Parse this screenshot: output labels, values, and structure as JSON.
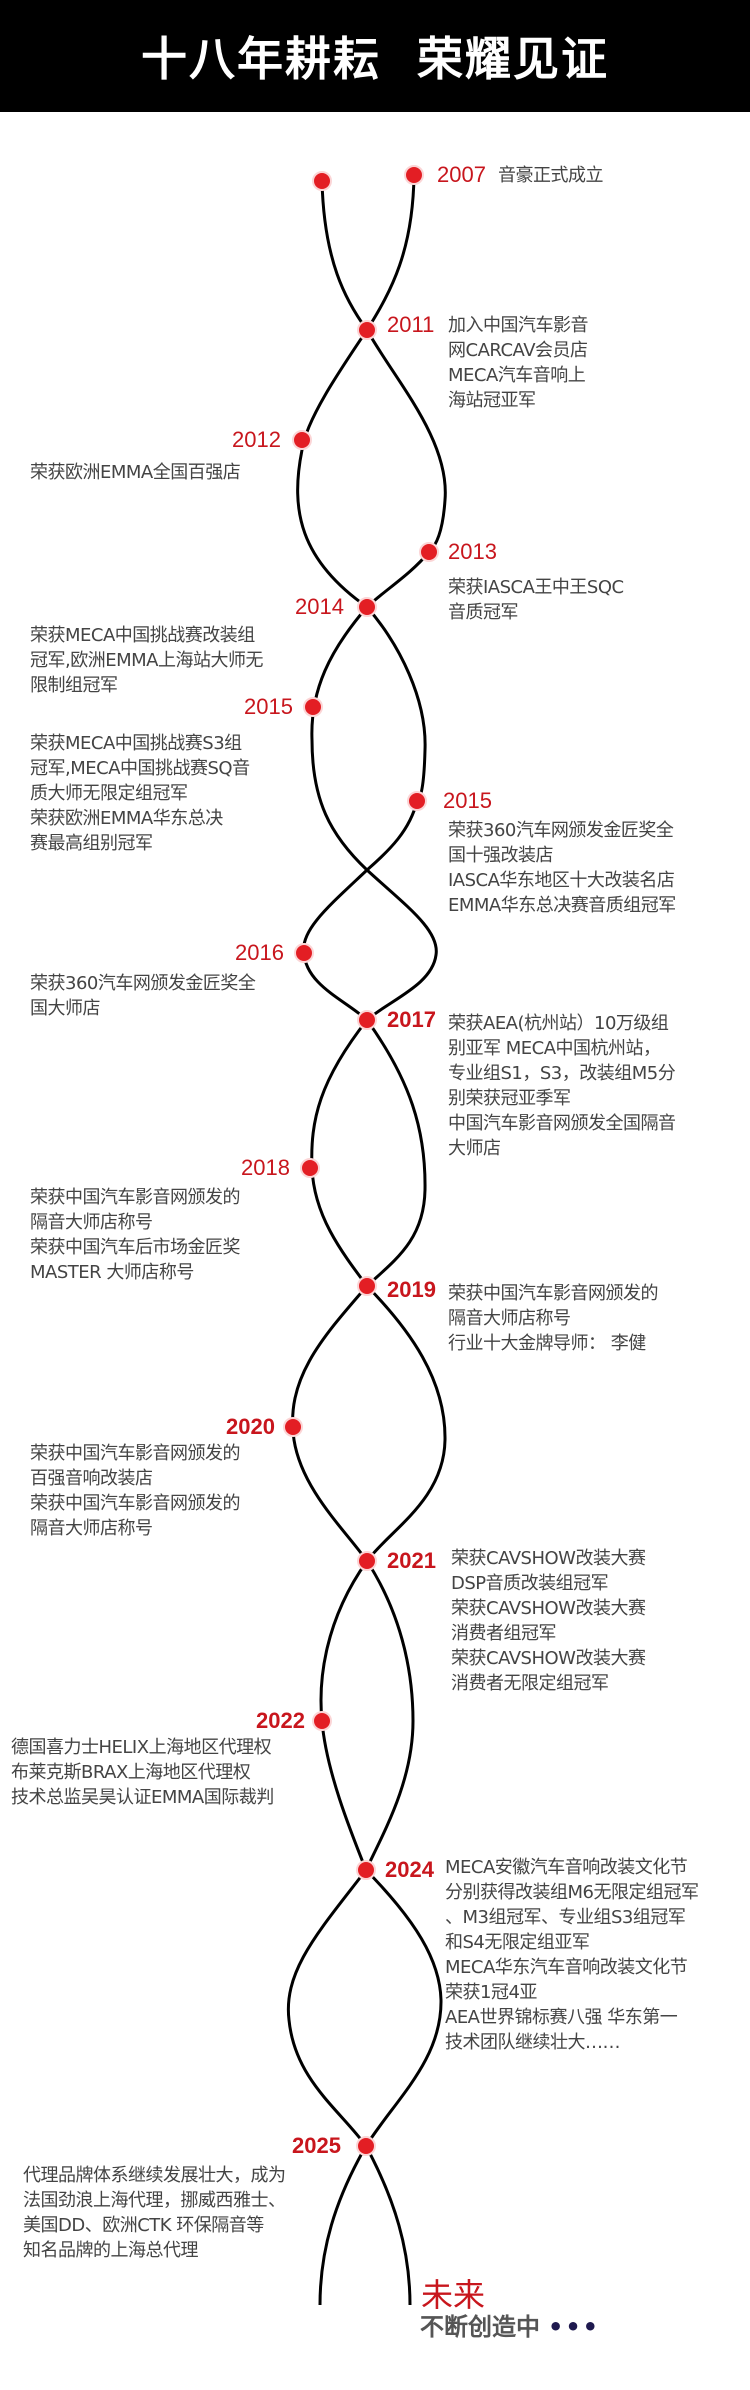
{
  "header": {
    "title": "十八年耕耘  荣耀见证"
  },
  "colors": {
    "header_bg": "#000000",
    "year": "#c8161d",
    "dot": "#e31e24",
    "text": "#444444",
    "line": "#000000"
  },
  "events": [
    {
      "year": "2007",
      "lines": [
        "音豪正式成立"
      ]
    },
    {
      "year": "2011",
      "lines": [
        "加入中国汽车影音",
        "网CARCAV会员店",
        "MECA汽车音响上",
        "海站冠亚军"
      ]
    },
    {
      "year": "2012",
      "lines": [
        "荣获欧洲EMMA全国百强店"
      ]
    },
    {
      "year": "2013",
      "lines": [
        "荣获IASCA王中王SQC",
        "音质冠军"
      ]
    },
    {
      "year": "2014",
      "lines": [
        "荣获MECA中国挑战赛改装组",
        "冠军,欧洲EMMA上海站大师无",
        "限制组冠军"
      ]
    },
    {
      "year": "2015",
      "lines": [
        "荣获MECA中国挑战赛S3组",
        "冠军,MECA中国挑战赛SQ音",
        "质大师无限定组冠军",
        "荣获欧洲EMMA华东总决",
        "赛最高组别冠军"
      ]
    },
    {
      "year": "2015",
      "lines": [
        "荣获360汽车网颁发金匠奖全",
        "国十强改装店",
        "IASCA华东地区十大改装名店",
        "EMMA华东总决赛音质组冠军"
      ]
    },
    {
      "year": "2016",
      "lines": [
        "荣获360汽车网颁发金匠奖全",
        "国大师店"
      ]
    },
    {
      "year": "2017",
      "lines": [
        "荣获AEA(杭州站）10万级组",
        "别亚军  MECA中国杭州站，",
        "专业组S1，S3，改装组M5分",
        "别荣获冠亚季军",
        "中国汽车影音网颁发全国隔音",
        "大师店"
      ]
    },
    {
      "year": "2018",
      "lines": [
        "荣获中国汽车影音网颁发的",
        "隔音大师店称号",
        "荣获中国汽车后市场金匠奖",
        "MASTER 大师店称号"
      ]
    },
    {
      "year": "2019",
      "lines": [
        "荣获中国汽车影音网颁发的",
        "隔音大师店称号",
        "行业十大金牌导师：  李健"
      ]
    },
    {
      "year": "2020",
      "lines": [
        "荣获中国汽车影音网颁发的",
        "百强音响改装店",
        "荣获中国汽车影音网颁发的",
        "隔音大师店称号"
      ]
    },
    {
      "year": "2021",
      "lines": [
        "荣获CAVSHOW改装大赛",
        "DSP音质改装组冠军",
        "荣获CAVSHOW改装大赛",
        "消费者组冠军",
        "荣获CAVSHOW改装大赛",
        "消费者无限定组冠军"
      ]
    },
    {
      "year": "2022",
      "lines": [
        "德国喜力士HELIX上海地区代理权",
        "布莱克斯BRAX上海地区代理权",
        "技术总监吴昊认证EMMA国际裁判"
      ]
    },
    {
      "year": "2024",
      "lines": [
        "MECA安徽汽车音响改装文化节",
        "分别获得改装组M6无限定组冠军",
        "、M3组冠军、专业组S3组冠军",
        "和S4无限定组亚军",
        "MECA华东汽车音响改装文化节",
        "荣获1冠4亚",
        "AEA世界锦标赛八强 华东第一",
        "技术团队继续壮大……"
      ]
    },
    {
      "year": "2025",
      "lines": [
        "代理品牌体系继续发展壮大，成为",
        "法国劲浪上海代理，挪威西雅士、",
        "美国DD、欧洲CTK 环保隔音等",
        "知名品牌的上海总代理"
      ]
    }
  ],
  "future": {
    "title": "未来",
    "subtitle": "不断创造中",
    "ellipsis": "•••"
  }
}
